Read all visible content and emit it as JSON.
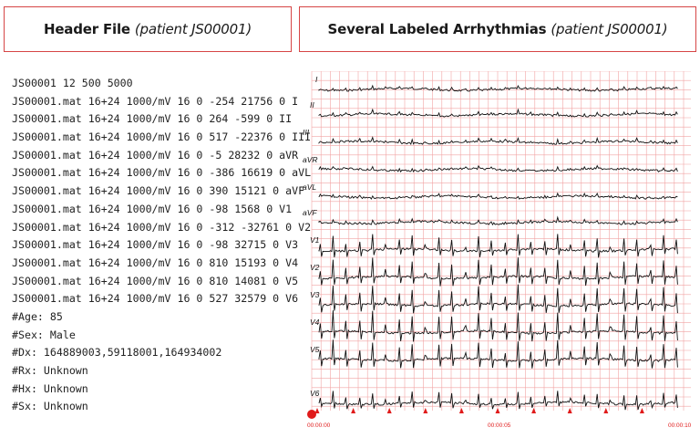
{
  "left_panel": {
    "title_main": "Header File",
    "title_sub": "(patient JS00001)",
    "lines": [
      "JS00001 12 500 5000",
      "JS00001.mat 16+24 1000/mV 16 0 -254 21756 0 I",
      "JS00001.mat 16+24 1000/mV 16 0 264 -599 0 II",
      "JS00001.mat 16+24 1000/mV 16 0 517 -22376 0 III",
      "JS00001.mat 16+24 1000/mV 16 0 -5 28232 0 aVR",
      "JS00001.mat 16+24 1000/mV 16 0 -386 16619 0 aVL",
      "JS00001.mat 16+24 1000/mV 16 0 390 15121 0 aVF",
      "JS00001.mat 16+24 1000/mV 16 0 -98 1568 0 V1",
      "JS00001.mat 16+24 1000/mV 16 0 -312 -32761 0 V2",
      "JS00001.mat 16+24 1000/mV 16 0 -98 32715 0 V3",
      "JS00001.mat 16+24 1000/mV 16 0 810 15193 0 V4",
      "JS00001.mat 16+24 1000/mV 16 0 810 14081 0 V5",
      "JS00001.mat 16+24 1000/mV 16 0 527 32579 0 V6",
      "#Age: 85",
      "#Sex: Male",
      "#Dx: 164889003,59118001,164934002",
      "#Rx: Unknown",
      "#Hx: Unknown",
      "#Sx: Unknown"
    ]
  },
  "right_panel": {
    "title_main": "Several Labeled Arrhythmias",
    "title_sub": "(patient JS00001)",
    "leads": [
      "I",
      "II",
      "III",
      "aVR",
      "aVL",
      "aVF",
      "V1",
      "V2",
      "V3",
      "V4",
      "V5",
      "V6"
    ],
    "time_labels": [
      "00:00:00",
      "00:00:05",
      "00:00:10"
    ],
    "colors": {
      "grid": "#f2a3a3",
      "trace": "#111111",
      "marker": "#e01b1b",
      "frame": "#d64545"
    }
  }
}
